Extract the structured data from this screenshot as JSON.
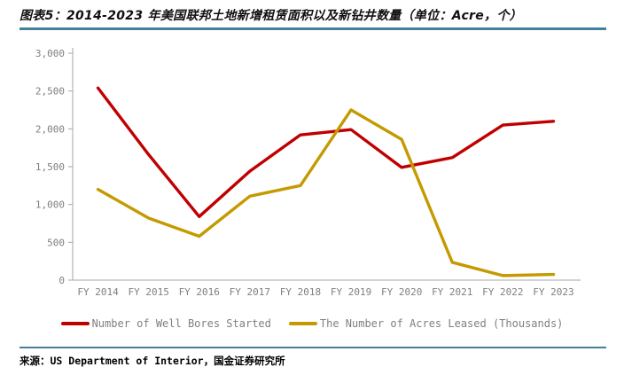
{
  "title": "图表5：2014-2023 年美国联邦土地新增租赁面积以及新钻井数量（单位：Acre，个）",
  "source_note": "来源：US Department of Interior，国金证券研究所",
  "colors": {
    "rule_teal": "#44809A",
    "series_red": "#C00000",
    "series_gold": "#C49A00",
    "axis_line": "#A6A6A6",
    "label_gray": "#7F7F7F"
  },
  "chart_data": {
    "type": "line",
    "categories": [
      "FY 2014",
      "FY 2015",
      "FY 2016",
      "FY 2017",
      "FY 2018",
      "FY 2019",
      "FY 2020",
      "FY 2021",
      "FY 2022",
      "FY 2023"
    ],
    "series": [
      {
        "name": "Number of Well Bores Started",
        "color": "#C00000",
        "values": [
          2540,
          1660,
          840,
          1440,
          1920,
          1990,
          1490,
          1620,
          2050,
          2100
        ]
      },
      {
        "name": "The Number of Acres Leased (Thousands)",
        "color": "#C49A00",
        "values": [
          1200,
          820,
          580,
          1110,
          1250,
          2250,
          1860,
          235,
          60,
          75
        ]
      }
    ],
    "title": "",
    "xlabel": "",
    "ylabel": "",
    "ylim": [
      0,
      3000
    ],
    "ytick_values": [
      0,
      500,
      1000,
      1500,
      2000,
      2500,
      3000
    ],
    "ytick_labels": [
      "0",
      "500",
      "1,000",
      "1,500",
      "2,000",
      "2,500",
      "3,000"
    ],
    "grid": false,
    "legend_position": "bottom"
  }
}
